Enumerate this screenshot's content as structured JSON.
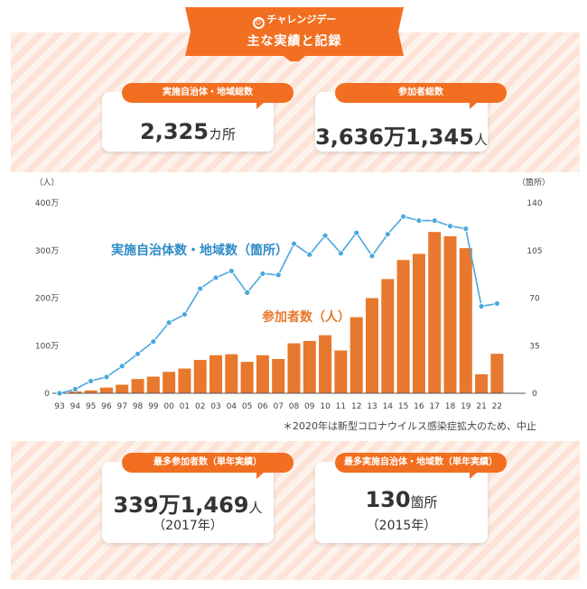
{
  "banner": {
    "subtitle": "チャレンジデー",
    "title": "主な実績と記録"
  },
  "stats_top": [
    {
      "label": "実施自治体・地域総数",
      "value": "2,325",
      "unit": "カ所"
    },
    {
      "label": "参加者総数",
      "value": "3,636万1,345",
      "unit": "人"
    }
  ],
  "stats_bottom": [
    {
      "label": "最多参加者数（単年実績）",
      "value": "339万1,469",
      "unit": "人",
      "year": "（2017年）"
    },
    {
      "label": "最多実施自治体・地域数（単年実績）",
      "value": "130",
      "unit": "箇所",
      "year": "（2015年）"
    }
  ],
  "colors": {
    "accent": "#f26f21",
    "bar": "#e8782d",
    "line": "#4aa8dd",
    "line_label": "#2e8cc6"
  },
  "chart_data": {
    "type": "bar+line",
    "categories": [
      "93",
      "94",
      "95",
      "96",
      "97",
      "98",
      "99",
      "00",
      "01",
      "02",
      "03",
      "04",
      "05",
      "06",
      "07",
      "08",
      "09",
      "10",
      "11",
      "12",
      "13",
      "14",
      "15",
      "16",
      "17",
      "18",
      "19",
      "21",
      "22"
    ],
    "series": [
      {
        "name": "参加者数（人）",
        "type": "bar",
        "axis": "left",
        "values": [
          0,
          4,
          6,
          12,
          18,
          30,
          35,
          45,
          52,
          70,
          80,
          82,
          66,
          80,
          72,
          105,
          110,
          122,
          90,
          160,
          200,
          240,
          280,
          293,
          339,
          330,
          305,
          40,
          83
        ]
      },
      {
        "name": "実施自治体数・地域数（箇所）",
        "type": "line",
        "axis": "right",
        "values": [
          0,
          3,
          9,
          12,
          20,
          29,
          38,
          52,
          58,
          77,
          85,
          90,
          74,
          88,
          87,
          110,
          102,
          116,
          103,
          118,
          101,
          117,
          130,
          127,
          127,
          123,
          121,
          64,
          66
        ]
      }
    ],
    "left_axis": {
      "unit": "（人）",
      "ticks": [
        "0",
        "100万",
        "200万",
        "300万",
        "400万"
      ],
      "ylim": [
        0,
        400
      ]
    },
    "right_axis": {
      "unit": "（箇所）",
      "ticks": [
        "0",
        "35",
        "70",
        "105",
        "140"
      ],
      "ylim": [
        0,
        140
      ]
    },
    "footnote": "＊2020年は新型コロナウイルス感染症拡大のため、中止"
  }
}
